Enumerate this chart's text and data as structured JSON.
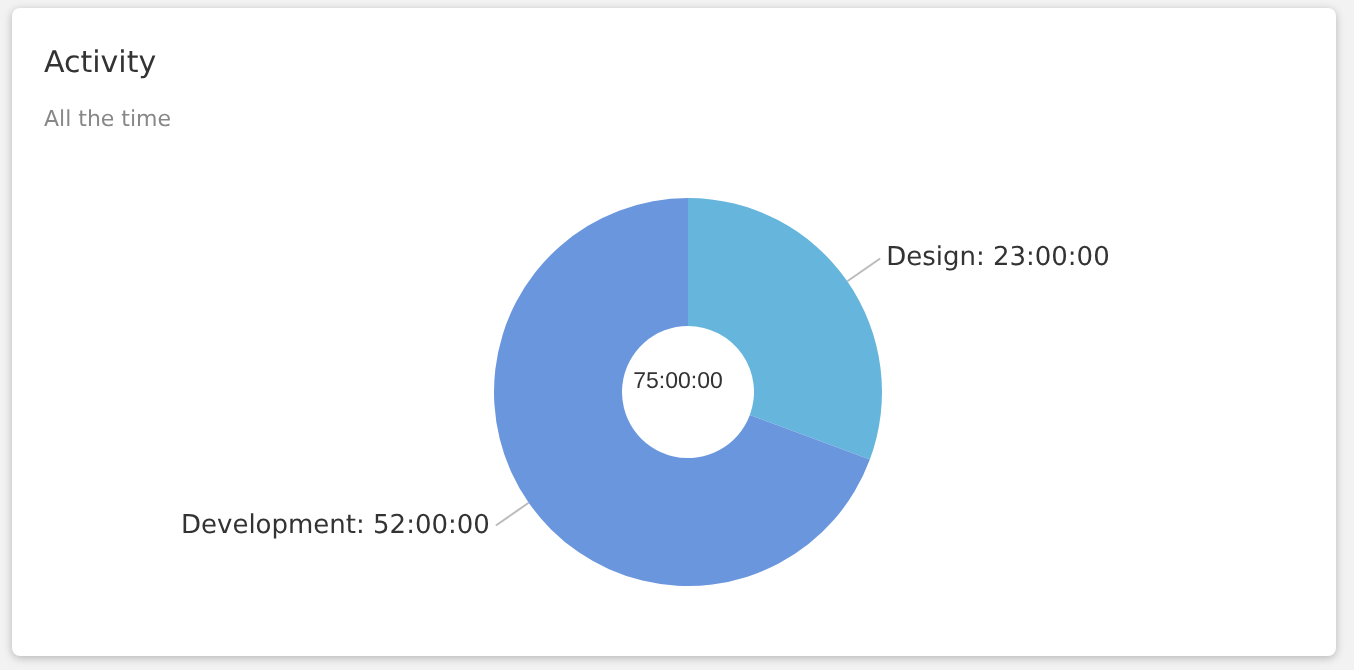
{
  "chart_data": {
    "type": "donut",
    "title": "Activity",
    "subtitle": "All the time",
    "categories": [
      "Design",
      "Development"
    ],
    "values": [
      23,
      52
    ],
    "value_labels": [
      "23:00:00",
      "52:00:00"
    ],
    "colors": [
      "#66b5dc",
      "#6a96de"
    ],
    "annotations": [
      "75:00:00"
    ],
    "legend": false
  }
}
